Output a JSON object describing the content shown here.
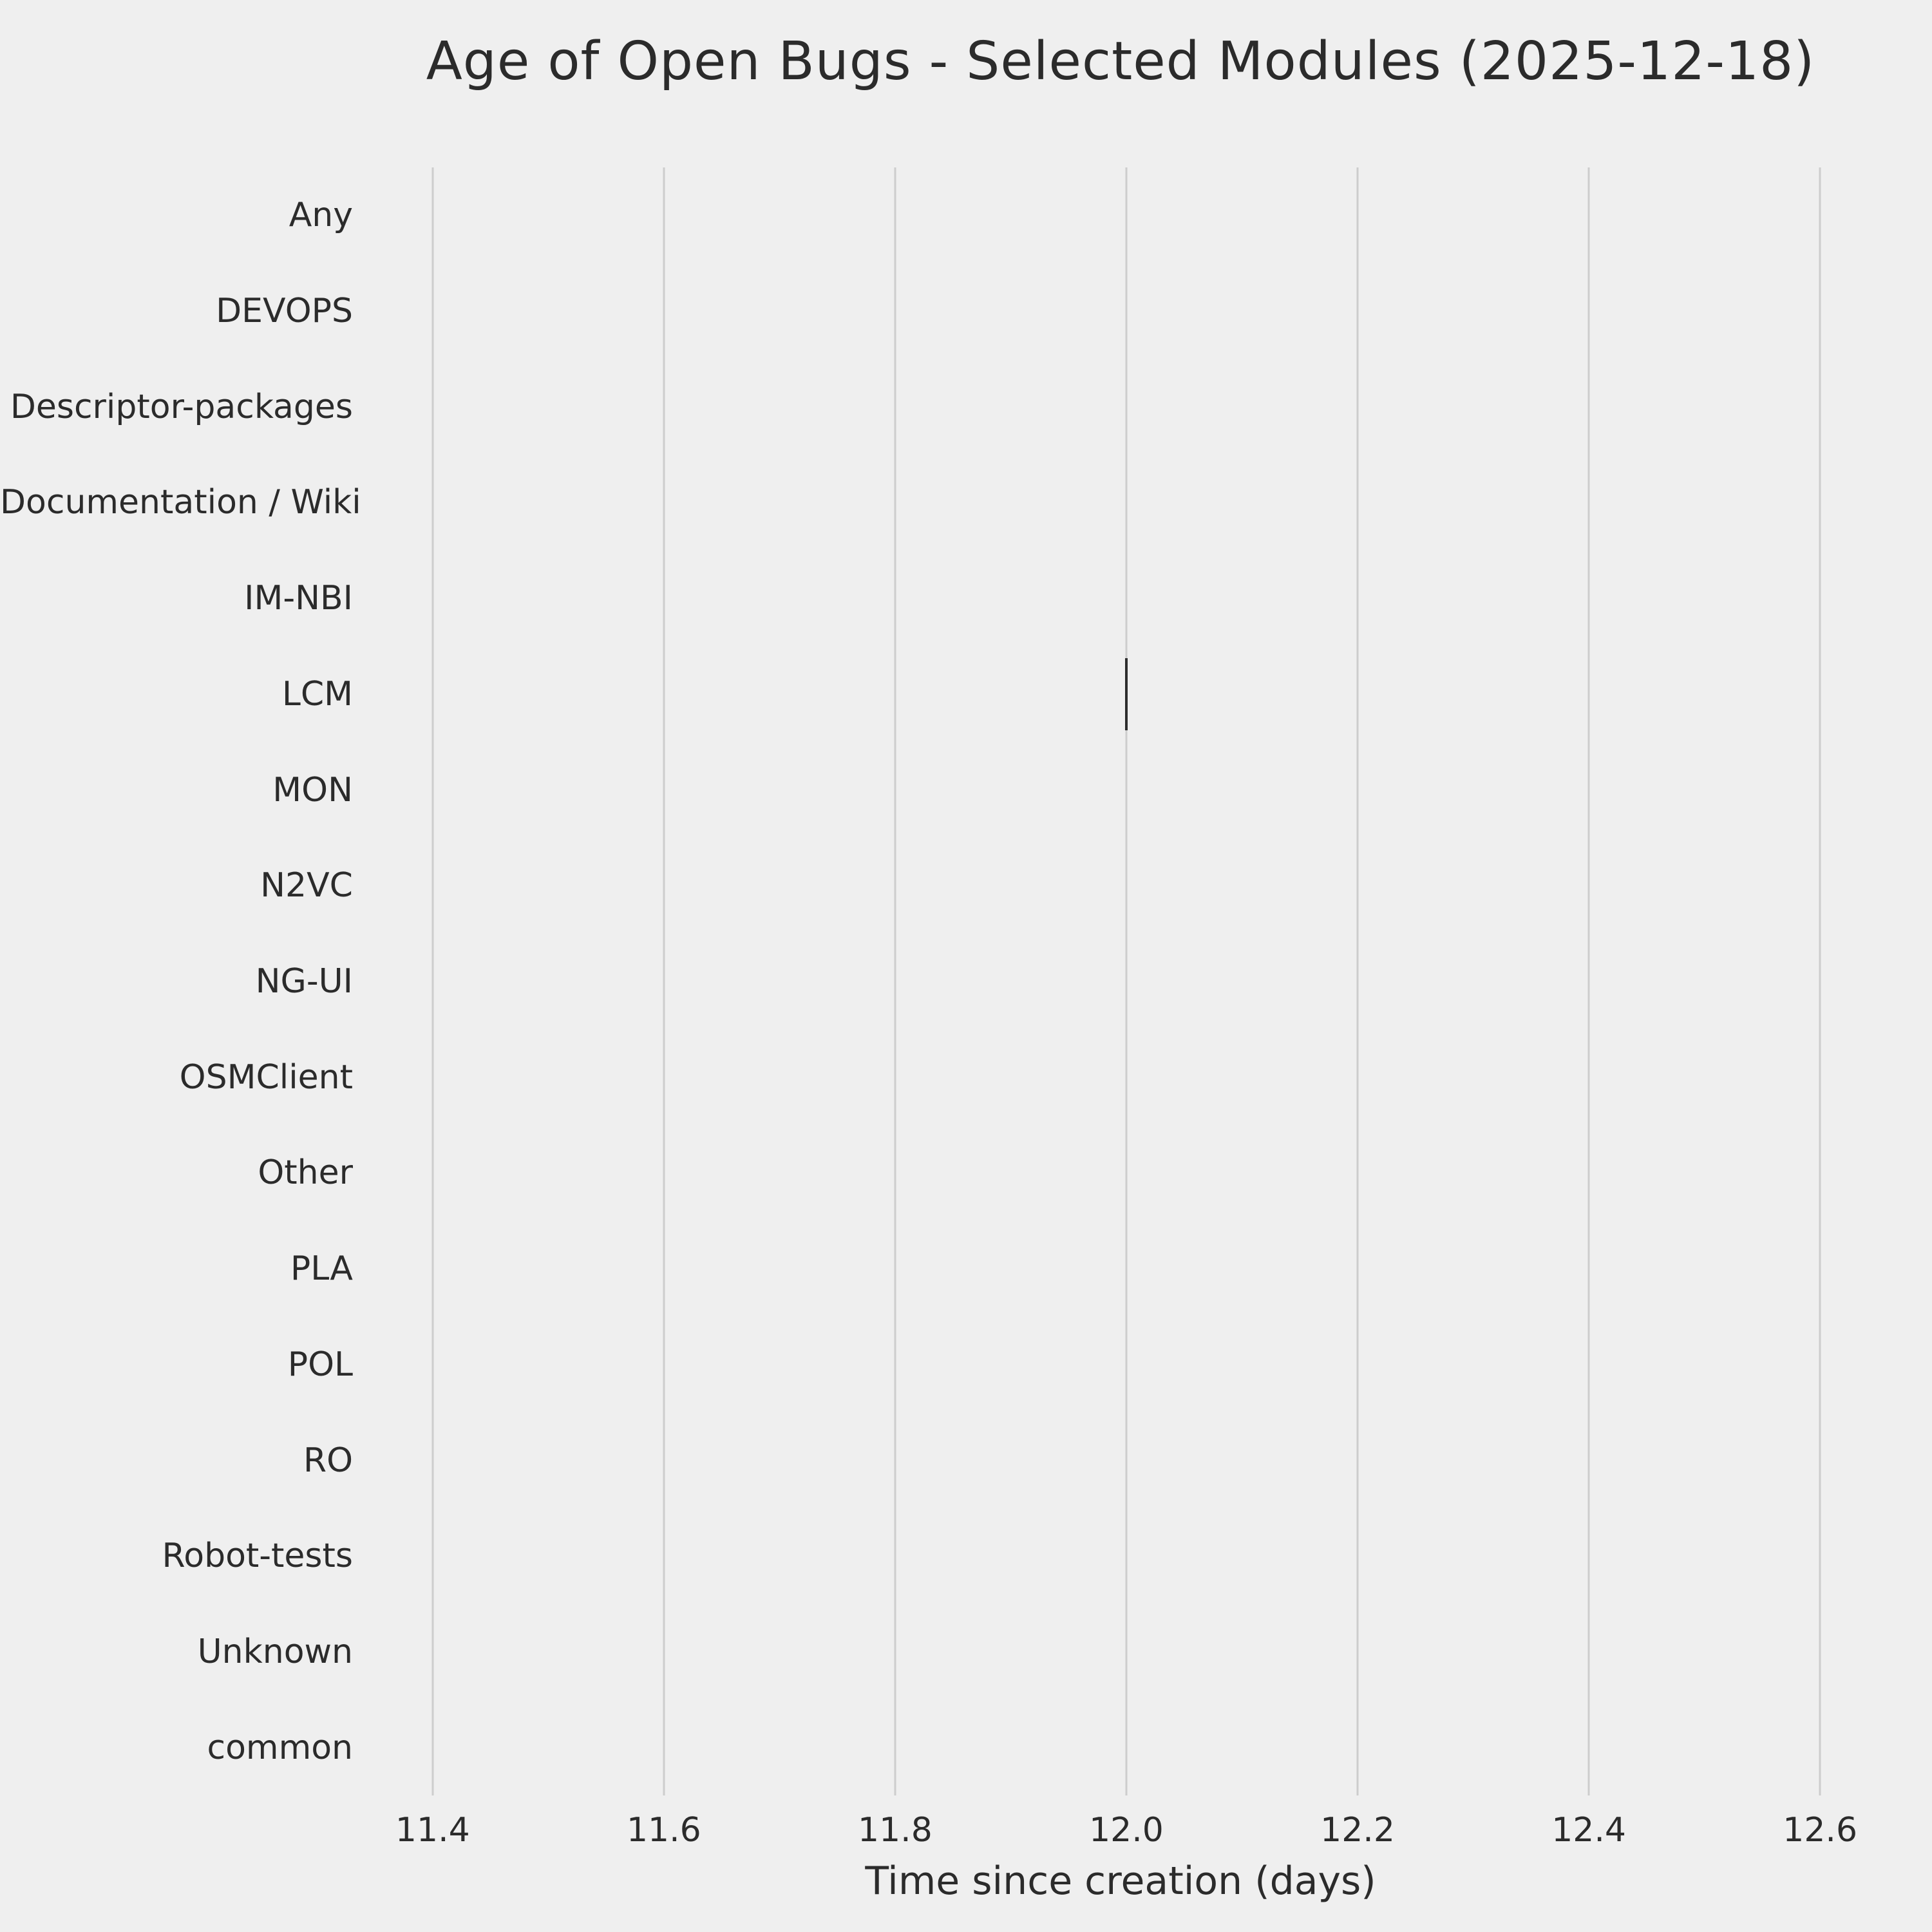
{
  "chart_data": {
    "type": "boxplot",
    "orientation": "horizontal",
    "title": "Age of Open Bugs - Selected Modules (2025-12-18)",
    "xlabel": "Time since creation (days)",
    "ylabel": "",
    "categories": [
      "Any",
      "DEVOPS",
      "Descriptor-packages",
      "Documentation / Wiki",
      "IM-NBI",
      "LCM",
      "MON",
      "N2VC",
      "NG-UI",
      "OSMClient",
      "Other",
      "PLA",
      "POL",
      "RO",
      "Robot-tests",
      "Unknown",
      "common"
    ],
    "points": [
      {
        "category": "LCM",
        "value": 12.0
      }
    ],
    "xticks": [
      11.4,
      11.6,
      11.8,
      12.0,
      12.2,
      12.4,
      12.6
    ],
    "xlim": [
      11.36,
      12.63
    ],
    "grid": "vertical",
    "legend": "none",
    "colors": {
      "background": "#efefef",
      "gridline": "#cdcdcd",
      "text": "#2b2b2b",
      "mark": "#2d2d2d"
    }
  }
}
